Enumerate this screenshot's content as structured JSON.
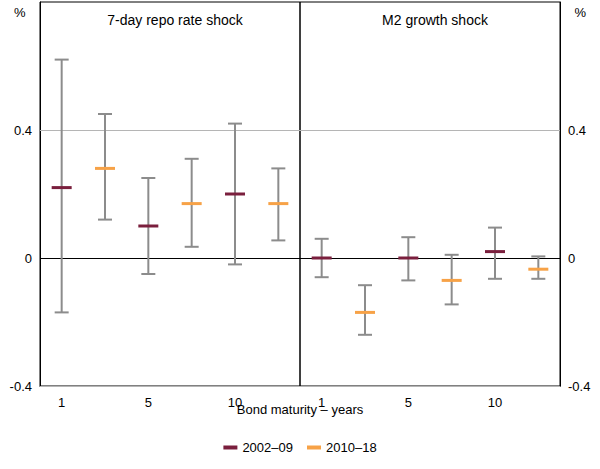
{
  "chart_data": {
    "type": "errorbar",
    "xlabel": "Bond maturity – years",
    "y_label": "%",
    "categories": [
      "1",
      null,
      "5",
      null,
      "10",
      null
    ],
    "ylim": [
      -0.4,
      0.8
    ],
    "yticks": [
      -0.4,
      0,
      0.4
    ],
    "grid": true,
    "legend": "bottom",
    "panels": [
      {
        "title": "7-day repo rate shock",
        "series": [
          {
            "name": "2002–09",
            "color": "#7a1f3d",
            "values": [
              0.22,
              null,
              0.1,
              null,
              0.2,
              null
            ],
            "lower": [
              -0.17,
              null,
              -0.05,
              null,
              -0.02,
              null
            ],
            "upper": [
              0.62,
              null,
              0.25,
              null,
              0.42,
              null
            ]
          },
          {
            "name": "2010–18",
            "color": "#f7a247",
            "values": [
              null,
              0.28,
              null,
              0.17,
              null,
              0.17
            ],
            "lower": [
              null,
              0.12,
              null,
              0.035,
              null,
              0.055
            ],
            "upper": [
              null,
              0.45,
              null,
              0.31,
              null,
              0.28
            ]
          }
        ]
      },
      {
        "title": "M2 growth shock",
        "series": [
          {
            "name": "2002–09",
            "color": "#7a1f3d",
            "values": [
              0,
              null,
              0,
              null,
              0.02,
              null
            ],
            "lower": [
              -0.06,
              null,
              -0.07,
              null,
              -0.065,
              null
            ],
            "upper": [
              0.06,
              null,
              0.065,
              null,
              0.095,
              null
            ]
          },
          {
            "name": "2010–18",
            "color": "#f7a247",
            "values": [
              null,
              -0.17,
              null,
              -0.07,
              null,
              -0.035
            ],
            "lower": [
              null,
              -0.24,
              null,
              -0.145,
              null,
              -0.065
            ],
            "upper": [
              null,
              -0.085,
              null,
              0.01,
              null,
              0.005
            ]
          }
        ]
      }
    ]
  }
}
